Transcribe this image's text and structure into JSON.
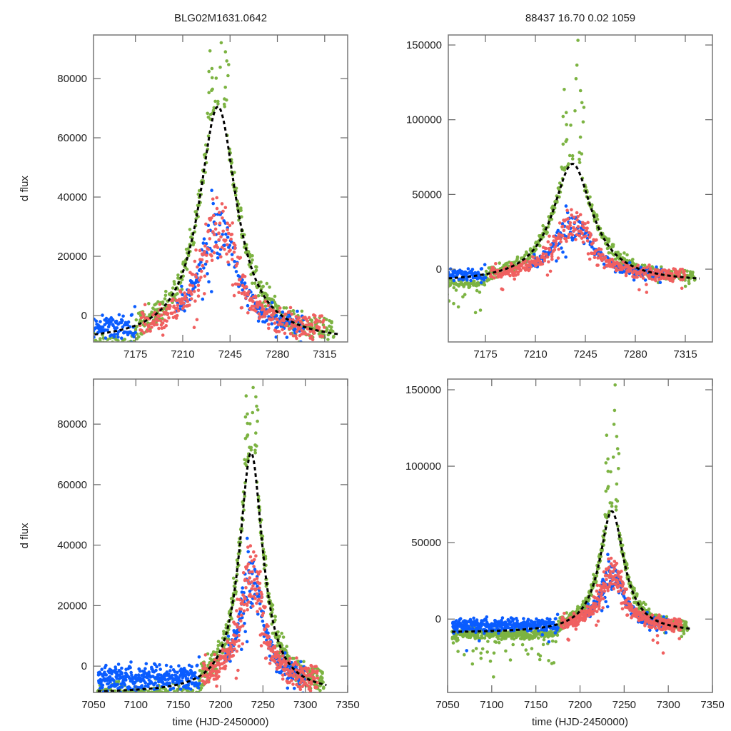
{
  "chart_data": {
    "type": "scatter",
    "figure_titles": {
      "left": "BLG02M1631.0642",
      "right": "88437  16.70  0.02  1059"
    },
    "series_colors": {
      "green": "#7cb342",
      "blue": "#0a5cff",
      "red": "#f06060",
      "model": "#000000"
    },
    "series": [
      {
        "name": "green",
        "color": "#7cb342"
      },
      {
        "name": "blue",
        "color": "#0a5cff"
      },
      {
        "name": "red",
        "color": "#f06060"
      },
      {
        "name": "model",
        "color": "#000000",
        "style": "dashed-line"
      }
    ],
    "model": {
      "t0": 7236,
      "peak": 70500,
      "baseline": -9000,
      "width_days": 16
    },
    "panels": [
      {
        "id": "top-left",
        "xlim": [
          7144,
          7332
        ],
        "ylim": [
          -8900,
          94700
        ],
        "xticks": [
          7175,
          7210,
          7245,
          7280,
          7315
        ],
        "yticks": [
          0,
          20000,
          40000,
          60000,
          80000
        ],
        "xlabel": "",
        "ylabel": "d flux",
        "data_start": 7140,
        "data_end": 7322
      },
      {
        "id": "top-right",
        "xlim": [
          7149,
          7334
        ],
        "ylim": [
          -48700,
          156700
        ],
        "xticks": [
          7175,
          7210,
          7245,
          7280,
          7315
        ],
        "yticks": [
          0,
          50000,
          100000,
          150000
        ],
        "xlabel": "",
        "ylabel": "",
        "data_start": 7140,
        "data_end": 7322
      },
      {
        "id": "bottom-left",
        "xlim": [
          7050,
          7350
        ],
        "ylim": [
          -8700,
          94900
        ],
        "xticks": [
          7050,
          7100,
          7150,
          7200,
          7250,
          7300,
          7350
        ],
        "yticks": [
          0,
          20000,
          40000,
          60000,
          80000
        ],
        "xlabel": "time (HJD-2450000)",
        "ylabel": "d flux",
        "data_start": 7055,
        "data_end": 7322
      },
      {
        "id": "bottom-right",
        "xlim": [
          7050,
          7350
        ],
        "ylim": [
          -48000,
          157000
        ],
        "xticks": [
          7050,
          7100,
          7150,
          7200,
          7250,
          7300,
          7350
        ],
        "yticks": [
          0,
          50000,
          100000,
          150000
        ],
        "xlabel": "time (HJD-2450000)",
        "ylabel": "",
        "data_start": 7055,
        "data_end": 7322
      }
    ],
    "features": {
      "green_peak_max": 92000,
      "green_peak_max_right": 156000,
      "red_blue_peak_max": 46000,
      "blue_baseline": -4000,
      "green_baseline": -10000
    }
  }
}
